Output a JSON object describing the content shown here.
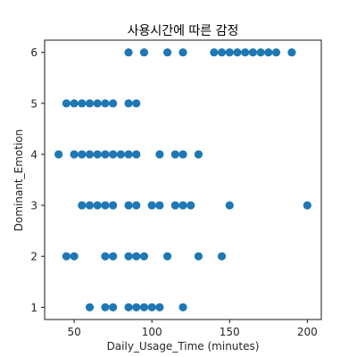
{
  "chart_data": {
    "type": "scatter",
    "title": "사용시간에 따른 감정",
    "xlabel": "Daily_Usage_Time (minutes)",
    "ylabel": "Dominant_Emotion",
    "xlim": [
      31,
      209
    ],
    "ylim": [
      0.76,
      6.24
    ],
    "xticks": [
      50,
      100,
      150,
      200
    ],
    "yticks": [
      1,
      2,
      3,
      4,
      5,
      6
    ],
    "grid": false,
    "marker_color": "#1f77b4",
    "series": [
      {
        "points": [
          [
            85,
            6
          ],
          [
            95,
            6
          ],
          [
            110,
            6
          ],
          [
            120,
            6
          ],
          [
            140,
            6
          ],
          [
            145,
            6
          ],
          [
            150,
            6
          ],
          [
            155,
            6
          ],
          [
            160,
            6
          ],
          [
            165,
            6
          ],
          [
            170,
            6
          ],
          [
            175,
            6
          ],
          [
            180,
            6
          ],
          [
            190,
            6
          ],
          [
            45,
            5
          ],
          [
            50,
            5
          ],
          [
            55,
            5
          ],
          [
            60,
            5
          ],
          [
            65,
            5
          ],
          [
            70,
            5
          ],
          [
            75,
            5
          ],
          [
            85,
            5
          ],
          [
            90,
            5
          ],
          [
            40,
            4
          ],
          [
            50,
            4
          ],
          [
            55,
            4
          ],
          [
            60,
            4
          ],
          [
            65,
            4
          ],
          [
            70,
            4
          ],
          [
            75,
            4
          ],
          [
            80,
            4
          ],
          [
            85,
            4
          ],
          [
            90,
            4
          ],
          [
            105,
            4
          ],
          [
            115,
            4
          ],
          [
            120,
            4
          ],
          [
            130,
            4
          ],
          [
            55,
            3
          ],
          [
            60,
            3
          ],
          [
            65,
            3
          ],
          [
            70,
            3
          ],
          [
            75,
            3
          ],
          [
            85,
            3
          ],
          [
            90,
            3
          ],
          [
            100,
            3
          ],
          [
            105,
            3
          ],
          [
            115,
            3
          ],
          [
            120,
            3
          ],
          [
            125,
            3
          ],
          [
            150,
            3
          ],
          [
            200,
            3
          ],
          [
            45,
            2
          ],
          [
            50,
            2
          ],
          [
            70,
            2
          ],
          [
            75,
            2
          ],
          [
            85,
            2
          ],
          [
            90,
            2
          ],
          [
            95,
            2
          ],
          [
            110,
            2
          ],
          [
            130,
            2
          ],
          [
            145,
            2
          ],
          [
            60,
            1
          ],
          [
            70,
            1
          ],
          [
            75,
            1
          ],
          [
            85,
            1
          ],
          [
            90,
            1
          ],
          [
            95,
            1
          ],
          [
            100,
            1
          ],
          [
            105,
            1
          ],
          [
            120,
            1
          ]
        ]
      }
    ]
  }
}
